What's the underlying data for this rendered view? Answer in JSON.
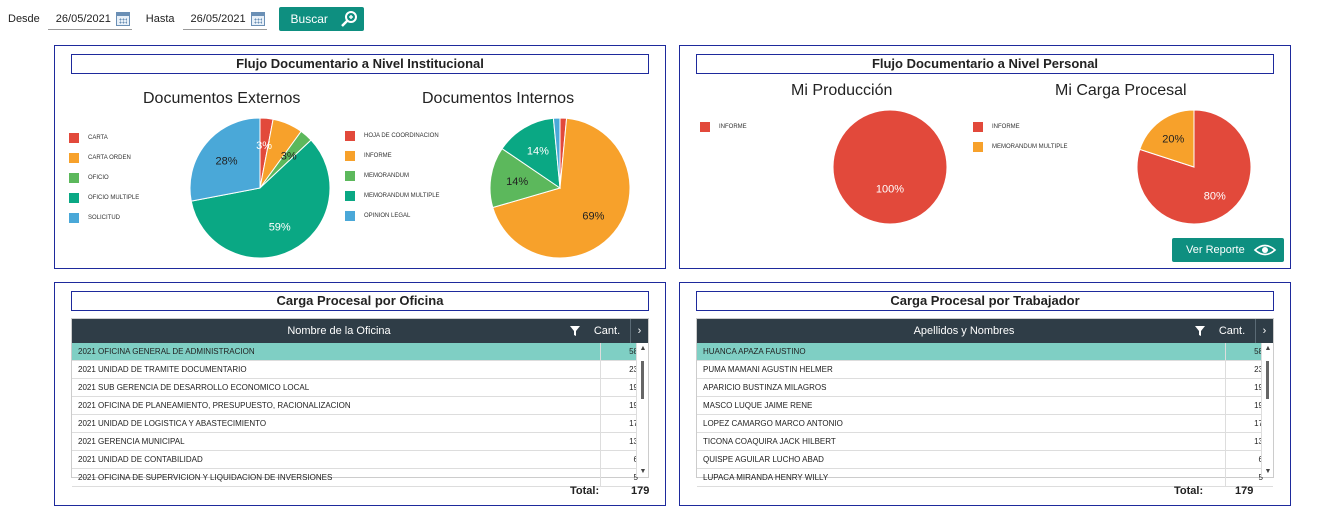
{
  "toolbar": {
    "desde_label": "Desde",
    "desde_value": "26/05/2021",
    "hasta_label": "Hasta",
    "hasta_value": "26/05/2021",
    "buscar_label": "Buscar"
  },
  "institucional": {
    "title": "Flujo Documentario a Nivel Institucional",
    "externos_title": "Documentos Externos",
    "internos_title": "Documentos Internos"
  },
  "personal": {
    "title": "Flujo Documentario a Nivel Personal",
    "produccion_title": "Mi Producción",
    "carga_title": "Mi Carga Procesal",
    "ver_reporte_label": "Ver Reporte"
  },
  "chart_data": [
    {
      "type": "pie",
      "title": "Documentos Externos",
      "categories": [
        "CARTA",
        "CARTA ORDEN",
        "OFICIO",
        "OFICIO MULTIPLE",
        "SOLICITUD"
      ],
      "values": [
        3,
        7,
        3,
        59,
        28
      ],
      "labels": [
        "3%",
        "",
        "3%",
        "59%",
        "28%"
      ],
      "colors": [
        "#e2493b",
        "#f7a12b",
        "#5cb85c",
        "#0aa884",
        "#4aa8d8"
      ],
      "legend": "left"
    },
    {
      "type": "pie",
      "title": "Documentos Internos",
      "categories": [
        "HOJA DE COORDINACION",
        "INFORME",
        "MEMORANDUM",
        "MEMORANDUM MULTIPLE",
        "OPINION LEGAL"
      ],
      "values": [
        1.5,
        69,
        14,
        14,
        1.5
      ],
      "labels": [
        "",
        "69%",
        "14%",
        "14%",
        ""
      ],
      "colors": [
        "#e2493b",
        "#f7a12b",
        "#5cb85c",
        "#0aa884",
        "#4aa8d8"
      ],
      "legend": "left"
    },
    {
      "type": "pie",
      "title": "Mi Producción",
      "categories": [
        "INFORME"
      ],
      "values": [
        100
      ],
      "labels": [
        "100%"
      ],
      "colors": [
        "#e2493b"
      ],
      "legend": "left"
    },
    {
      "type": "pie",
      "title": "Mi Carga Procesal",
      "categories": [
        "INFORME",
        "MEMORANDUM MULTIPLE"
      ],
      "values": [
        80,
        20
      ],
      "labels": [
        "80%",
        "20%"
      ],
      "colors": [
        "#e2493b",
        "#f7a12b"
      ],
      "legend": "left"
    }
  ],
  "oficina": {
    "title": "Carga Procesal por Oficina",
    "col_name": "Nombre de la Oficina",
    "col_cant": "Cant.",
    "total_label": "Total:",
    "total_value": "179",
    "rows": [
      {
        "name": "2021 OFICINA GENERAL DE ADMINISTRACION",
        "cant": "58"
      },
      {
        "name": "2021 UNIDAD DE TRAMITE DOCUMENTARIO",
        "cant": "23"
      },
      {
        "name": "2021 SUB GERENCIA DE DESARROLLO ECONOMICO LOCAL",
        "cant": "19"
      },
      {
        "name": "2021 OFICINA DE PLANEAMIENTO, PRESUPUESTO, RACIONALIZACION",
        "cant": "19"
      },
      {
        "name": "2021 UNIDAD DE LOGISTICA Y ABASTECIMIENTO",
        "cant": "17"
      },
      {
        "name": "2021 GERENCIA MUNICIPAL",
        "cant": "13"
      },
      {
        "name": "2021 UNIDAD DE CONTABILIDAD",
        "cant": "6"
      },
      {
        "name": "2021 OFICINA DE SUPERVICION Y LIQUIDACION DE INVERSIONES",
        "cant": "5"
      }
    ]
  },
  "trabajador": {
    "title": "Carga Procesal por Trabajador",
    "col_name": "Apellidos y Nombres",
    "col_cant": "Cant.",
    "total_label": "Total:",
    "total_value": "179",
    "rows": [
      {
        "name": "HUANCA APAZA FAUSTINO",
        "cant": "58"
      },
      {
        "name": "PUMA MAMANI AGUSTIN HELMER",
        "cant": "23"
      },
      {
        "name": "APARICIO BUSTINZA MILAGROS",
        "cant": "19"
      },
      {
        "name": "MASCO LUQUE JAIME RENE",
        "cant": "19"
      },
      {
        "name": "LOPEZ CAMARGO MARCO ANTONIO",
        "cant": "17"
      },
      {
        "name": "TICONA COAQUIRA JACK HILBERT",
        "cant": "13"
      },
      {
        "name": "QUISPE AGUILAR LUCHO ABAD",
        "cant": "6"
      },
      {
        "name": "LUPACA MIRANDA HENRY WILLY",
        "cant": "5"
      }
    ]
  }
}
